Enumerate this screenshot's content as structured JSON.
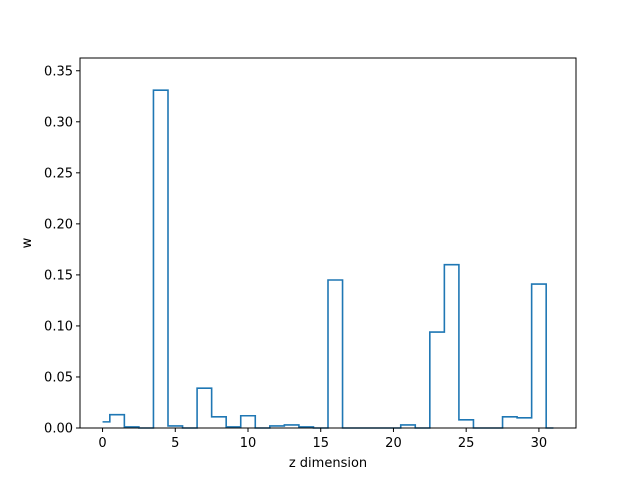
{
  "chart_data": {
    "type": "step",
    "title": "",
    "xlabel": "z dimension",
    "ylabel": "w",
    "xlim": [
      -1.55,
      32.55
    ],
    "ylim": [
      0,
      0.3625
    ],
    "x_ticks": [
      0,
      5,
      10,
      15,
      20,
      25,
      30
    ],
    "x_tick_labels": [
      "0",
      "5",
      "10",
      "15",
      "20",
      "25",
      "30"
    ],
    "y_ticks": [
      0,
      0.05,
      0.1,
      0.15,
      0.2,
      0.25,
      0.3,
      0.35
    ],
    "y_tick_labels": [
      "0.00",
      "0.05",
      "0.10",
      "0.15",
      "0.20",
      "0.25",
      "0.30",
      "0.35"
    ],
    "grid": false,
    "step_where": "mid",
    "series": [
      {
        "color": "#1f77b4",
        "x": [
          0,
          1,
          2,
          3,
          4,
          5,
          6,
          7,
          8,
          9,
          10,
          11,
          12,
          13,
          14,
          15,
          16,
          17,
          18,
          19,
          20,
          21,
          22,
          23,
          24,
          25,
          26,
          27,
          28,
          29,
          30,
          31
        ],
        "values": [
          0.006,
          0.013,
          0.001,
          0.0,
          0.331,
          0.002,
          0.0,
          0.039,
          0.011,
          0.001,
          0.012,
          0.0,
          0.002,
          0.003,
          0.001,
          0.0,
          0.145,
          0.0,
          0.0,
          0.0,
          0.0,
          0.003,
          0.0,
          0.094,
          0.16,
          0.008,
          0.0,
          0.0,
          0.011,
          0.01,
          0.141,
          0.0
        ]
      }
    ]
  }
}
